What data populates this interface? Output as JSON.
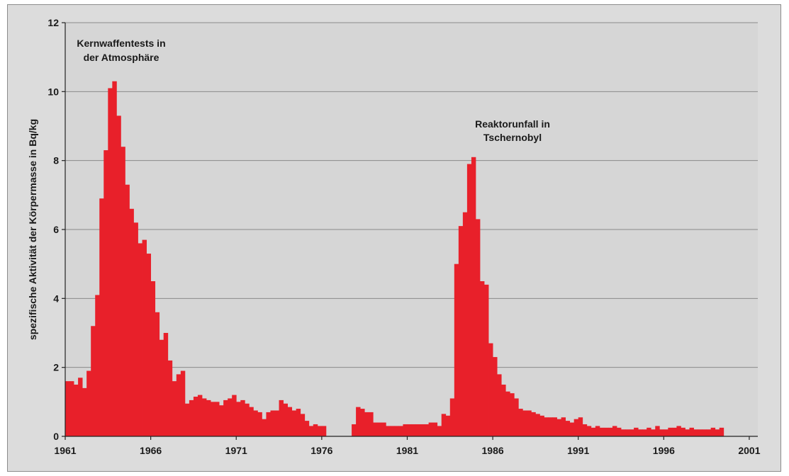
{
  "chart_data": {
    "type": "bar",
    "ylabel": "spezifische Aktivität der Körpermasse in Bq/kg",
    "xlabel": "",
    "title": "",
    "ylim": [
      0,
      12
    ],
    "xlim": [
      1961,
      2001.5
    ],
    "grid": true,
    "color": "#e8202a",
    "x_ticks": [
      1961,
      1966,
      1971,
      1976,
      1981,
      1986,
      1991,
      1996,
      2001
    ],
    "y_ticks": [
      0,
      2,
      4,
      6,
      8,
      10,
      12
    ],
    "annotations": [
      {
        "lines": [
          "Kernwaffentests in",
          "der Atmosphäre"
        ]
      },
      {
        "lines": [
          "Reaktorunfall in",
          "Tschernobyl"
        ]
      }
    ],
    "series": [
      {
        "x_start": 1961,
        "step": 0.25,
        "values": [
          1.6,
          1.6,
          1.5,
          1.7,
          1.4,
          1.9,
          3.2,
          4.1,
          6.9,
          8.3,
          10.1,
          10.3,
          9.3,
          8.4,
          7.3,
          6.6,
          6.2,
          5.6,
          5.7,
          5.3,
          4.5,
          3.6,
          2.8,
          3.0,
          2.2,
          1.6,
          1.8,
          1.9,
          0.95,
          1.05,
          1.15,
          1.2,
          1.1,
          1.05,
          1.0,
          1.0,
          0.9,
          1.05,
          1.1,
          1.2,
          1.0,
          1.05,
          0.95,
          0.85,
          0.75,
          0.7,
          0.5,
          0.7,
          0.75,
          0.75,
          1.05,
          0.95,
          0.85,
          0.75,
          0.8,
          0.65,
          0.45,
          0.3,
          0.35,
          0.3,
          0.3,
          0.0,
          0.0,
          0.0,
          0.0,
          0.0,
          0.0,
          0.35,
          0.85,
          0.8,
          0.7,
          0.7,
          0.4,
          0.4,
          0.4,
          0.3,
          0.3,
          0.3,
          0.3,
          0.35,
          0.35,
          0.35,
          0.35,
          0.35,
          0.35,
          0.4,
          0.4,
          0.3,
          0.65,
          0.6,
          1.1,
          5.0,
          6.1,
          6.5,
          7.9,
          8.1,
          6.3,
          4.5,
          4.4,
          2.7,
          2.3,
          1.8,
          1.5,
          1.3,
          1.25,
          1.1,
          0.8,
          0.75,
          0.75,
          0.7,
          0.65,
          0.6,
          0.55,
          0.55,
          0.55,
          0.5,
          0.55,
          0.45,
          0.4,
          0.5,
          0.55,
          0.35,
          0.3,
          0.25,
          0.3,
          0.25,
          0.25,
          0.25,
          0.3,
          0.25,
          0.2,
          0.2,
          0.2,
          0.25,
          0.2,
          0.2,
          0.25,
          0.2,
          0.3,
          0.2,
          0.2,
          0.25,
          0.25,
          0.3,
          0.25,
          0.2,
          0.25,
          0.2,
          0.2,
          0.2,
          0.2,
          0.25,
          0.2,
          0.25
        ]
      }
    ]
  }
}
